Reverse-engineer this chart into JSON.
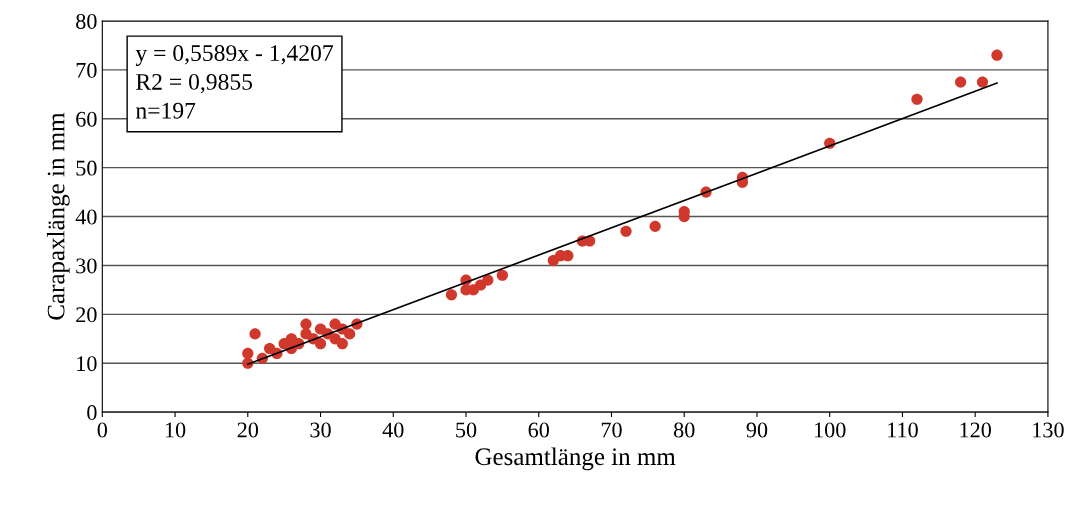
{
  "chart_data": {
    "type": "scatter",
    "xlabel": "Gesamtlänge in mm",
    "ylabel": "Carapaxlänge in mm",
    "annotations": [
      "y = 0,5589x - 1,4207\nR2 = 0,9855\nn=197"
    ],
    "xlim": [
      0,
      130
    ],
    "xticks": [
      0,
      10,
      20,
      30,
      40,
      50,
      60,
      70,
      80,
      90,
      100,
      110,
      120,
      130
    ],
    "ylim": [
      0,
      80
    ],
    "yticks": [
      0,
      10,
      20,
      30,
      40,
      50,
      60,
      70,
      80
    ],
    "grid": "y",
    "legend": false,
    "series": [
      {
        "color": "#d0382b",
        "marker": "circle",
        "x": [
          20,
          20,
          21,
          22,
          23,
          24,
          25,
          26,
          26,
          27,
          28,
          28,
          29,
          30,
          30,
          31,
          32,
          32,
          33,
          33,
          34,
          35,
          48,
          50,
          50,
          51,
          52,
          53,
          55,
          62,
          63,
          64,
          66,
          67,
          72,
          76,
          80,
          80,
          83,
          88,
          88,
          100,
          112,
          118,
          121,
          123
        ],
        "values": [
          10,
          12,
          16,
          11,
          13,
          12,
          14,
          13,
          15,
          14,
          16,
          18,
          15,
          14,
          17,
          16,
          15,
          18,
          14,
          17,
          16,
          18,
          24,
          25,
          27,
          25,
          26,
          27,
          28,
          31,
          32,
          32,
          35,
          35,
          37,
          38,
          40,
          41,
          45,
          47,
          48,
          55,
          64,
          67.5,
          67.5,
          73
        ]
      },
      {
        "type": "line",
        "color": "#000000",
        "marker": "none",
        "x": [
          20,
          123
        ],
        "values": [
          9.8,
          67.3
        ]
      }
    ]
  }
}
